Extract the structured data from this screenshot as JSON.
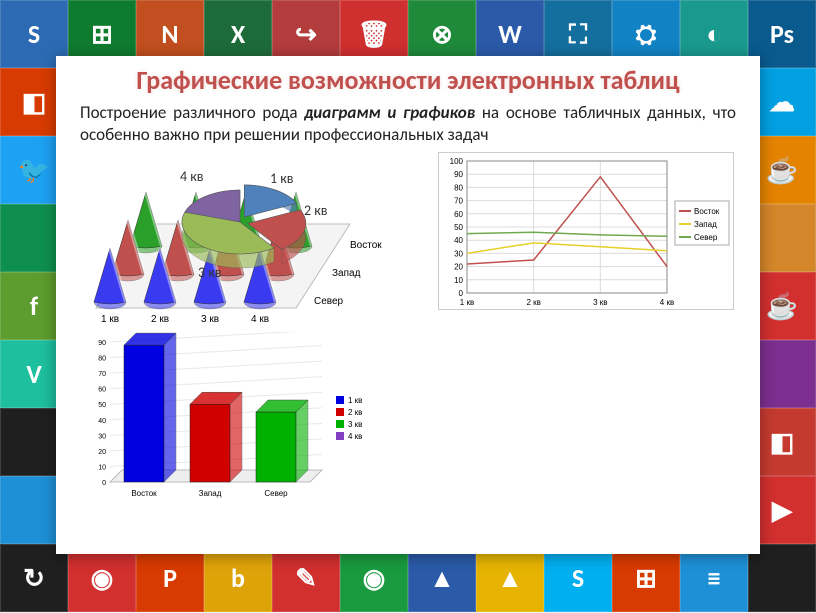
{
  "title": "Графические возможности электронных таблиц",
  "body_prefix": "Построение различного рода ",
  "body_bold": "диаграмм и графиков",
  "body_suffix": " на основе табличных данных, что особенно важно при решении профессиональных задач",
  "tiles": [
    {
      "c": "#2c6bb3",
      "t": "S"
    },
    {
      "c": "#0f7b2f",
      "t": "⊞"
    },
    {
      "c": "#c14f1f",
      "t": "N"
    },
    {
      "c": "#1e6b3a",
      "t": "X"
    },
    {
      "c": "#b33c3c",
      "t": "↪"
    },
    {
      "c": "#d02f2f",
      "t": "🗑"
    },
    {
      "c": "#1f8a3a",
      "t": "⊗"
    },
    {
      "c": "#2a5aa8",
      "t": "W"
    },
    {
      "c": "#156f9e",
      "t": "⛶"
    },
    {
      "c": "#1183c4",
      "t": "⛭"
    },
    {
      "c": "#1a9a8e",
      "t": "◐"
    },
    {
      "c": "#0a5a8e",
      "t": "Ps"
    },
    {
      "c": "#d83b01",
      "t": "◧"
    },
    {
      "c": "#fff",
      "t": ""
    },
    {
      "c": "#fff",
      "t": ""
    },
    {
      "c": "#fff",
      "t": ""
    },
    {
      "c": "#fff",
      "t": ""
    },
    {
      "c": "#fff",
      "t": ""
    },
    {
      "c": "#fff",
      "t": ""
    },
    {
      "c": "#fff",
      "t": ""
    },
    {
      "c": "#fff",
      "t": ""
    },
    {
      "c": "#fff",
      "t": ""
    },
    {
      "c": "#fff",
      "t": ""
    },
    {
      "c": "#00a0e3",
      "t": "☁"
    },
    {
      "c": "#1da1f2",
      "t": "🐦"
    },
    {
      "c": "#fff",
      "t": ""
    },
    {
      "c": "#fff",
      "t": ""
    },
    {
      "c": "#fff",
      "t": ""
    },
    {
      "c": "#fff",
      "t": ""
    },
    {
      "c": "#fff",
      "t": ""
    },
    {
      "c": "#fff",
      "t": ""
    },
    {
      "c": "#fff",
      "t": ""
    },
    {
      "c": "#fff",
      "t": ""
    },
    {
      "c": "#fff",
      "t": ""
    },
    {
      "c": "#fff",
      "t": ""
    },
    {
      "c": "#e48300",
      "t": "☕"
    },
    {
      "c": "#0f8f4f",
      "t": ""
    },
    {
      "c": "#fff",
      "t": ""
    },
    {
      "c": "#fff",
      "t": ""
    },
    {
      "c": "#fff",
      "t": ""
    },
    {
      "c": "#fff",
      "t": ""
    },
    {
      "c": "#fff",
      "t": ""
    },
    {
      "c": "#fff",
      "t": ""
    },
    {
      "c": "#fff",
      "t": ""
    },
    {
      "c": "#fff",
      "t": ""
    },
    {
      "c": "#fff",
      "t": ""
    },
    {
      "c": "#fff",
      "t": ""
    },
    {
      "c": "#d4862a",
      "t": ""
    },
    {
      "c": "#5d9c2e",
      "t": "f"
    },
    {
      "c": "#fff",
      "t": ""
    },
    {
      "c": "#fff",
      "t": ""
    },
    {
      "c": "#fff",
      "t": ""
    },
    {
      "c": "#fff",
      "t": ""
    },
    {
      "c": "#fff",
      "t": ""
    },
    {
      "c": "#fff",
      "t": ""
    },
    {
      "c": "#fff",
      "t": ""
    },
    {
      "c": "#fff",
      "t": ""
    },
    {
      "c": "#fff",
      "t": ""
    },
    {
      "c": "#fff",
      "t": ""
    },
    {
      "c": "#d22f2f",
      "t": "☕"
    },
    {
      "c": "#1dbf9e",
      "t": "V"
    },
    {
      "c": "#fff",
      "t": ""
    },
    {
      "c": "#fff",
      "t": ""
    },
    {
      "c": "#fff",
      "t": ""
    },
    {
      "c": "#fff",
      "t": ""
    },
    {
      "c": "#fff",
      "t": ""
    },
    {
      "c": "#fff",
      "t": ""
    },
    {
      "c": "#fff",
      "t": ""
    },
    {
      "c": "#fff",
      "t": ""
    },
    {
      "c": "#fff",
      "t": ""
    },
    {
      "c": "#fff",
      "t": ""
    },
    {
      "c": "#7c2f8e",
      "t": ""
    },
    {
      "c": "#1f1f1f",
      "t": ""
    },
    {
      "c": "#fff",
      "t": ""
    },
    {
      "c": "#fff",
      "t": ""
    },
    {
      "c": "#fff",
      "t": ""
    },
    {
      "c": "#fff",
      "t": ""
    },
    {
      "c": "#fff",
      "t": ""
    },
    {
      "c": "#fff",
      "t": ""
    },
    {
      "c": "#fff",
      "t": ""
    },
    {
      "c": "#fff",
      "t": ""
    },
    {
      "c": "#fff",
      "t": ""
    },
    {
      "c": "#fff",
      "t": ""
    },
    {
      "c": "#c43a2f",
      "t": "◧"
    },
    {
      "c": "#1e90d6",
      "t": ""
    },
    {
      "c": "#fff",
      "t": ""
    },
    {
      "c": "#fff",
      "t": ""
    },
    {
      "c": "#fff",
      "t": ""
    },
    {
      "c": "#fff",
      "t": ""
    },
    {
      "c": "#fff",
      "t": ""
    },
    {
      "c": "#fff",
      "t": ""
    },
    {
      "c": "#fff",
      "t": ""
    },
    {
      "c": "#fff",
      "t": ""
    },
    {
      "c": "#fff",
      "t": ""
    },
    {
      "c": "#fff",
      "t": ""
    },
    {
      "c": "#d22f2f",
      "t": "▶"
    },
    {
      "c": "#1f1f1f",
      "t": "↻"
    },
    {
      "c": "#d22f2f",
      "t": "◉"
    },
    {
      "c": "#d83b01",
      "t": "P"
    },
    {
      "c": "#dfa30a",
      "t": "b"
    },
    {
      "c": "#d22f2f",
      "t": "✎"
    },
    {
      "c": "#199a3f",
      "t": "◉"
    },
    {
      "c": "#2a5aa8",
      "t": "▲"
    },
    {
      "c": "#e6b400",
      "t": "▲"
    },
    {
      "c": "#00aff0",
      "t": "S"
    },
    {
      "c": "#d83b01",
      "t": "⊞"
    },
    {
      "c": "#1e90d6",
      "t": "≡"
    },
    {
      "c": "#1f1f1f",
      "t": ""
    }
  ],
  "pie": {
    "labels": [
      "1 кв",
      "2 кв",
      "3 кв",
      "4 кв"
    ],
    "values": [
      18,
      22,
      40,
      20
    ],
    "colors": [
      "#4f81bd",
      "#c0504d",
      "#9bbb59",
      "#8064a2"
    ],
    "label_fontsize": 14
  },
  "line_chart": {
    "type": "line",
    "x_categories": [
      "1 кв",
      "2 кв",
      "3 кв",
      "4 кв"
    ],
    "ylim": [
      0,
      100
    ],
    "ytick_step": 10,
    "grid_color": "#dcdcdc",
    "background": "#ffffff",
    "series": [
      {
        "name": "Восток",
        "color": "#c0504d",
        "values": [
          22,
          25,
          88,
          20
        ]
      },
      {
        "name": "Запад",
        "color": "#e6d028",
        "values": [
          30,
          38,
          35,
          32
        ]
      },
      {
        "name": "Север",
        "color": "#6fa84f",
        "values": [
          45,
          46,
          44,
          43
        ]
      }
    ]
  },
  "cone_chart": {
    "type": "cone-3d",
    "x_categories": [
      "1 кв",
      "2 кв",
      "3 кв",
      "4 кв"
    ],
    "series": [
      {
        "name": "Север",
        "color": "#3a3af0"
      },
      {
        "name": "Запад",
        "color": "#c0504d"
      },
      {
        "name": "Восток",
        "color": "#2aa02a"
      }
    ],
    "rows": 3,
    "cols": 4
  },
  "bar3d": {
    "type": "bar-3d",
    "categories": [
      "Восток",
      "Запад",
      "Север"
    ],
    "ylim": [
      0,
      90
    ],
    "ytick_step": 10,
    "series_colors": [
      "#0000e0",
      "#d00000",
      "#00b000"
    ],
    "values": [
      88,
      50,
      45
    ],
    "legend": [
      "1 кв",
      "2 кв",
      "3 кв",
      "4 кв"
    ]
  }
}
